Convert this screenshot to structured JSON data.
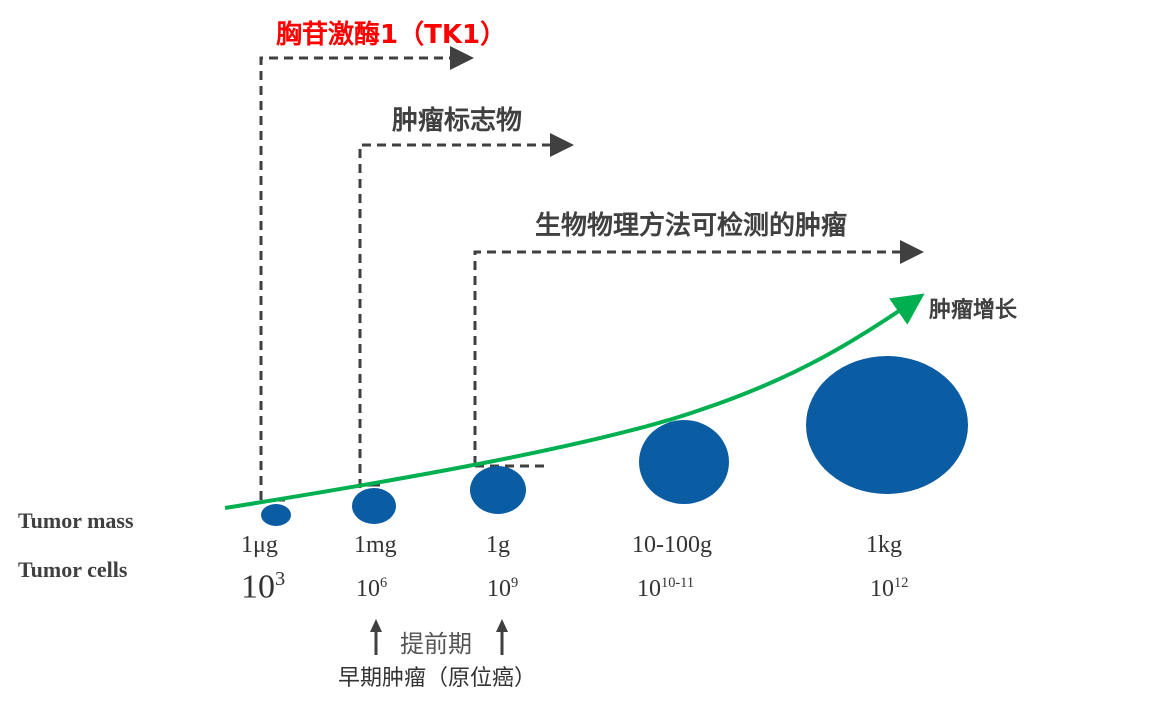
{
  "labels": {
    "tk1": "胸苷激酶1（TK1）",
    "tumor_markers": "肿瘤标志物",
    "physical_detection": "生物物理方法可检测的肿瘤",
    "tumor_growth": "肿瘤增长",
    "tumor_mass": "Tumor mass",
    "tumor_cells": "Tumor cells",
    "lead_time": "提前期",
    "early_tumor": "早期肿瘤（原位癌）"
  },
  "stages": [
    {
      "mass": "1μg",
      "cells_base": "10",
      "cells_exp": "3"
    },
    {
      "mass": "1mg",
      "cells_base": "10",
      "cells_exp": "6"
    },
    {
      "mass": "1g",
      "cells_base": "10",
      "cells_exp": "9"
    },
    {
      "mass": "10-100g",
      "cells_base": "10",
      "cells_exp": "10-11"
    },
    {
      "mass": "1kg",
      "cells_base": "10",
      "cells_exp": "12"
    }
  ],
  "colors": {
    "tk1_label": "#ff0000",
    "tumor": "#0a5ca3",
    "growth_curve": "#00b050",
    "dashed": "#404040"
  }
}
